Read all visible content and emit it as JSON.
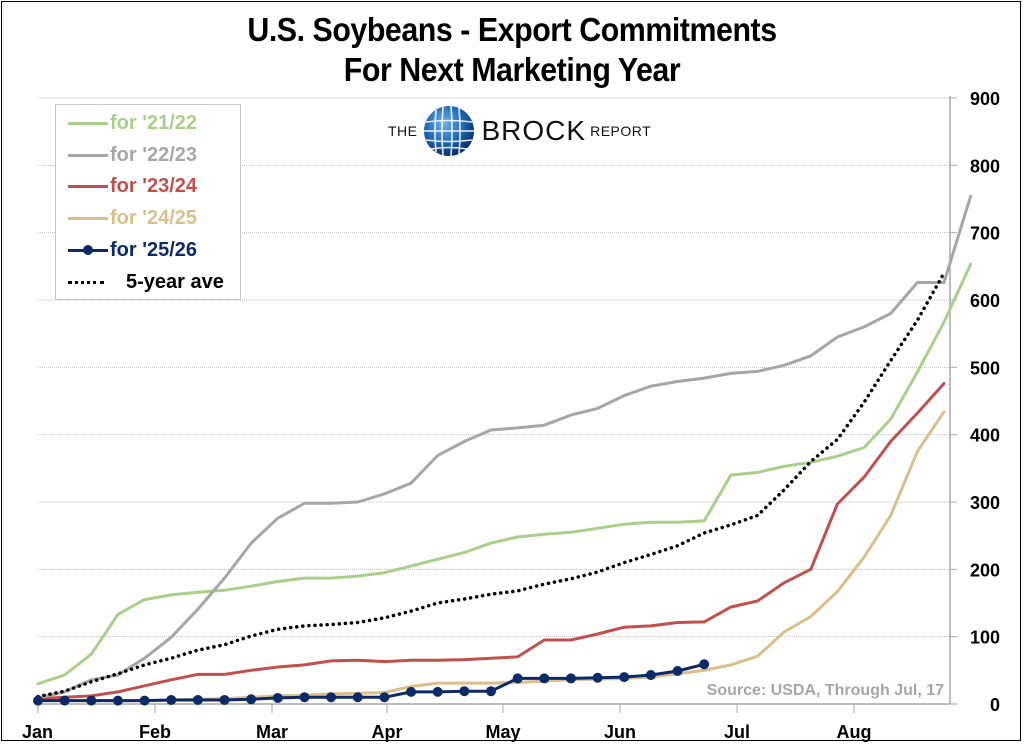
{
  "chart_data": {
    "type": "line",
    "title": "U.S. Soybeans - Export Commitments",
    "subtitle": "For Next Marketing Year",
    "xlabel": "",
    "ylabel": "",
    "ylim": [
      0,
      900
    ],
    "yticks": [
      "0",
      "100",
      "200",
      "300",
      "400",
      "500",
      "600",
      "700",
      "800",
      "900"
    ],
    "ytick_values": [
      0,
      100,
      200,
      300,
      400,
      500,
      600,
      700,
      800,
      900
    ],
    "xticks": [
      "Jan",
      "Feb",
      "Mar",
      "Apr",
      "May",
      "Jun",
      "Jul",
      "Aug"
    ],
    "grid": true,
    "legend_position": "top-left",
    "x_unit": "week",
    "week_count": 35,
    "series": [
      {
        "name": "for '21/22",
        "color": "#a9cf8a",
        "style": "solid",
        "values": [
          30,
          43,
          74,
          133,
          155,
          162,
          166,
          169,
          175,
          182,
          187,
          187,
          190,
          195,
          205,
          215,
          225,
          239,
          248,
          252,
          255,
          261,
          267,
          270,
          270,
          272,
          340,
          344,
          353,
          359,
          368,
          381,
          423,
          493,
          567,
          653
        ]
      },
      {
        "name": "for '22/23",
        "color": "#a6a6a6",
        "style": "solid",
        "values": [
          9,
          18,
          36,
          43,
          68,
          99,
          141,
          187,
          239,
          276,
          298,
          298,
          300,
          312,
          328,
          369,
          390,
          407,
          410,
          414,
          429,
          439,
          458,
          472,
          479,
          484,
          491,
          494,
          503,
          517,
          545,
          560,
          580,
          626,
          626,
          754
        ]
      },
      {
        "name": "for '23/24",
        "color": "#c0504d",
        "style": "solid",
        "values": [
          8,
          10,
          12,
          18,
          27,
          36,
          44,
          44,
          50,
          55,
          58,
          64,
          65,
          63,
          65,
          65,
          66,
          68,
          70,
          95,
          95,
          104,
          114,
          116,
          121,
          122,
          144,
          153,
          180,
          200,
          297,
          337,
          390,
          432,
          476
        ]
      },
      {
        "name": "for '24/25",
        "color": "#d9bf8c",
        "style": "solid",
        "values": [
          5,
          5,
          5,
          5,
          5,
          6,
          7,
          8,
          10,
          12,
          13,
          15,
          16,
          17,
          26,
          31,
          31,
          31,
          32,
          34,
          36,
          37,
          38,
          40,
          45,
          50,
          58,
          71,
          107,
          130,
          167,
          218,
          280,
          375,
          434
        ]
      },
      {
        "name": "for '25/26",
        "color": "#0d2a66",
        "style": "solid-markers",
        "values": [
          5,
          5,
          5,
          5,
          5,
          6,
          6,
          6,
          7,
          9,
          10,
          10,
          10,
          10,
          18,
          18,
          19,
          19,
          38,
          38,
          38,
          39,
          40,
          43,
          49,
          59
        ]
      },
      {
        "name": "5-year ave",
        "color": "#000000",
        "style": "dotted",
        "values": [
          11,
          19,
          33,
          45,
          58,
          68,
          80,
          88,
          101,
          111,
          116,
          118,
          121,
          128,
          138,
          150,
          156,
          163,
          168,
          178,
          186,
          196,
          210,
          222,
          235,
          254,
          266,
          280,
          318,
          360,
          393,
          448,
          510,
          570,
          640
        ]
      }
    ],
    "annotation": "Source: USDA, Through Jul, 17"
  },
  "logo": {
    "the": "THE",
    "brock": "BROCK",
    "report": "REPORT"
  }
}
